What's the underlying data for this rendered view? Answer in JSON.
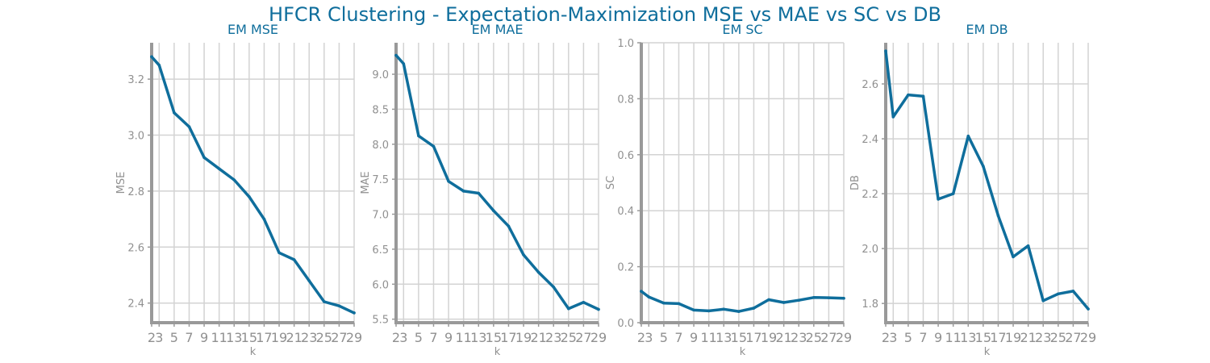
{
  "figure": {
    "title": "HFCR Clustering - Expectation-Maximization MSE vs MAE vs SC vs DB",
    "colors": {
      "line": "#0f6e9c",
      "title": "#0f6e9c",
      "axis": "#999999",
      "grid": "#d3d3d3",
      "tick_text": "#909090"
    }
  },
  "chart_data": [
    {
      "type": "line",
      "title": "EM MSE",
      "xlabel": "k",
      "ylabel": "MSE",
      "x": [
        2,
        3,
        5,
        7,
        9,
        11,
        13,
        15,
        17,
        19,
        21,
        23,
        25,
        27,
        29
      ],
      "x_ticks": [
        "2",
        "3",
        "5",
        "7",
        "9",
        "11",
        "13",
        "15",
        "17",
        "19",
        "21",
        "23",
        "25",
        "27",
        "29"
      ],
      "xlim": [
        2,
        29
      ],
      "y": [
        3.28,
        3.25,
        3.08,
        3.03,
        2.92,
        2.88,
        2.84,
        2.78,
        2.7,
        2.58,
        2.555,
        2.48,
        2.405,
        2.39,
        2.365
      ],
      "ylim": [
        2.33,
        3.33
      ],
      "y_ticks": [
        2.4,
        2.6,
        2.8,
        3.0,
        3.2
      ],
      "y_tick_labels": [
        "2.4",
        "2.6",
        "2.8",
        "3.0",
        "3.2"
      ],
      "grid": true
    },
    {
      "type": "line",
      "title": "EM MAE",
      "xlabel": "k",
      "ylabel": "MAE",
      "x": [
        2,
        3,
        5,
        7,
        9,
        11,
        13,
        15,
        17,
        19,
        21,
        23,
        25,
        27,
        29
      ],
      "x_ticks": [
        "2",
        "3",
        "5",
        "7",
        "9",
        "11",
        "13",
        "15",
        "17",
        "19",
        "21",
        "23",
        "25",
        "27",
        "29"
      ],
      "xlim": [
        2,
        29
      ],
      "y": [
        9.27,
        9.15,
        8.12,
        7.97,
        7.47,
        7.33,
        7.3,
        7.05,
        6.83,
        6.42,
        6.17,
        5.96,
        5.65,
        5.74,
        5.64
      ],
      "ylim": [
        5.45,
        9.45
      ],
      "y_ticks": [
        5.5,
        6.0,
        6.5,
        7.0,
        7.5,
        8.0,
        8.5,
        9.0
      ],
      "y_tick_labels": [
        "5.5",
        "6.0",
        "6.5",
        "7.0",
        "7.5",
        "8.0",
        "8.5",
        "9.0"
      ],
      "grid": true
    },
    {
      "type": "line",
      "title": "EM SC",
      "xlabel": "k",
      "ylabel": "SC",
      "x": [
        2,
        3,
        5,
        7,
        9,
        11,
        13,
        15,
        17,
        19,
        21,
        23,
        25,
        27,
        29
      ],
      "x_ticks": [
        "2",
        "3",
        "5",
        "7",
        "9",
        "11",
        "13",
        "15",
        "17",
        "19",
        "21",
        "23",
        "25",
        "27",
        "29"
      ],
      "xlim": [
        2,
        29
      ],
      "y": [
        0.112,
        0.092,
        0.07,
        0.068,
        0.045,
        0.042,
        0.048,
        0.04,
        0.052,
        0.082,
        0.072,
        0.08,
        0.09,
        0.089,
        0.087
      ],
      "ylim": [
        0.0,
        1.0
      ],
      "y_ticks": [
        0.0,
        0.2,
        0.4,
        0.6,
        0.8,
        1.0
      ],
      "y_tick_labels": [
        "0.0",
        "0.2",
        "0.4",
        "0.6",
        "0.8",
        "1.0"
      ],
      "grid": true
    },
    {
      "type": "line",
      "title": "EM DB",
      "xlabel": "k",
      "ylabel": "DB",
      "x": [
        2,
        3,
        5,
        7,
        9,
        11,
        13,
        15,
        17,
        19,
        21,
        23,
        25,
        27,
        29
      ],
      "x_ticks": [
        "2",
        "3",
        "5",
        "7",
        "9",
        "11",
        "13",
        "15",
        "17",
        "19",
        "21",
        "23",
        "25",
        "27",
        "29"
      ],
      "xlim": [
        2,
        29
      ],
      "y": [
        2.72,
        2.48,
        2.56,
        2.555,
        2.18,
        2.2,
        2.41,
        2.3,
        2.12,
        1.97,
        2.01,
        1.81,
        1.835,
        1.845,
        1.78
      ],
      "ylim": [
        1.73,
        2.75
      ],
      "y_ticks": [
        1.8,
        2.0,
        2.2,
        2.4,
        2.6
      ],
      "y_tick_labels": [
        "1.8",
        "2.0",
        "2.2",
        "2.4",
        "2.6"
      ],
      "grid": true
    }
  ]
}
